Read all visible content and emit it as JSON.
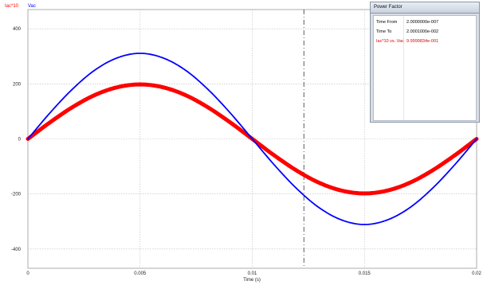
{
  "chart_data": {
    "type": "line",
    "title": "",
    "xlabel": "Time (s)",
    "ylabel": "",
    "xlim": [
      0,
      0.02
    ],
    "ylim": [
      -470,
      470
    ],
    "x_ticks": [
      0,
      0.005,
      0.01,
      0.015,
      0.02
    ],
    "x_tick_labels": [
      "0",
      "0.005",
      "0.01",
      "0.015",
      "0.02"
    ],
    "y_ticks": [
      -400,
      -200,
      0,
      200,
      400
    ],
    "y_tick_labels": [
      "-400",
      "-200",
      "0",
      "200",
      "400"
    ],
    "grid": true,
    "legend_placement": "top-left",
    "cursor_x": 0.0123,
    "x": [
      0,
      0.001,
      0.002,
      0.003,
      0.004,
      0.005,
      0.006,
      0.007,
      0.008,
      0.009,
      0.01,
      0.011,
      0.012,
      0.013,
      0.014,
      0.015,
      0.016,
      0.017,
      0.018,
      0.019,
      0.02
    ],
    "series": [
      {
        "name": "Iac*10",
        "color": "#ff0000",
        "values": [
          0,
          61,
          116,
          160,
          188,
          198,
          188,
          160,
          116,
          61,
          0,
          -61,
          -116,
          -160,
          -188,
          -198,
          -188,
          -160,
          -116,
          -61,
          0
        ]
      },
      {
        "name": "Vac",
        "color": "#0000ff",
        "values": [
          0,
          96,
          182,
          251,
          295,
          311,
          295,
          251,
          182,
          96,
          0,
          -96,
          -182,
          -251,
          -295,
          -311,
          -295,
          -251,
          -182,
          -96,
          0
        ]
      }
    ]
  },
  "power_factor": {
    "title": "Power Factor",
    "rows": [
      {
        "label": "Time  From",
        "value": "2.0000000e-007"
      },
      {
        "label": "Time  To",
        "value": "2.0001000e-002"
      },
      {
        "label": "Iac*10 vs. Vac",
        "value": "9.9999834e-001"
      }
    ]
  }
}
